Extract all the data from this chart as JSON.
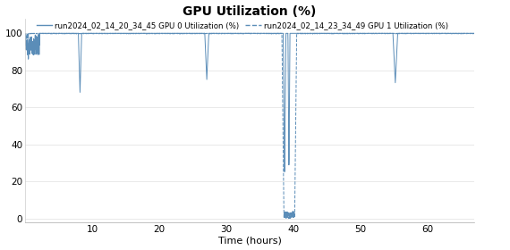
{
  "title": "GPU Utilization (%)",
  "xlabel": "Time (hours)",
  "legend1": "run2024_02_14_20_34_45 GPU 0 Utilization (%)",
  "legend2": "run2024_02_14_23_34_49 GPU 1 Utilization (%)",
  "xlim": [
    0,
    67
  ],
  "ylim": [
    -2,
    108
  ],
  "yticks": [
    0,
    20,
    40,
    60,
    80,
    100
  ],
  "xticks": [
    10,
    20,
    30,
    40,
    50,
    60
  ],
  "line_color": "#5B8DB8",
  "background_color": "#ffffff",
  "figsize": [
    5.7,
    2.8
  ],
  "dpi": 100
}
